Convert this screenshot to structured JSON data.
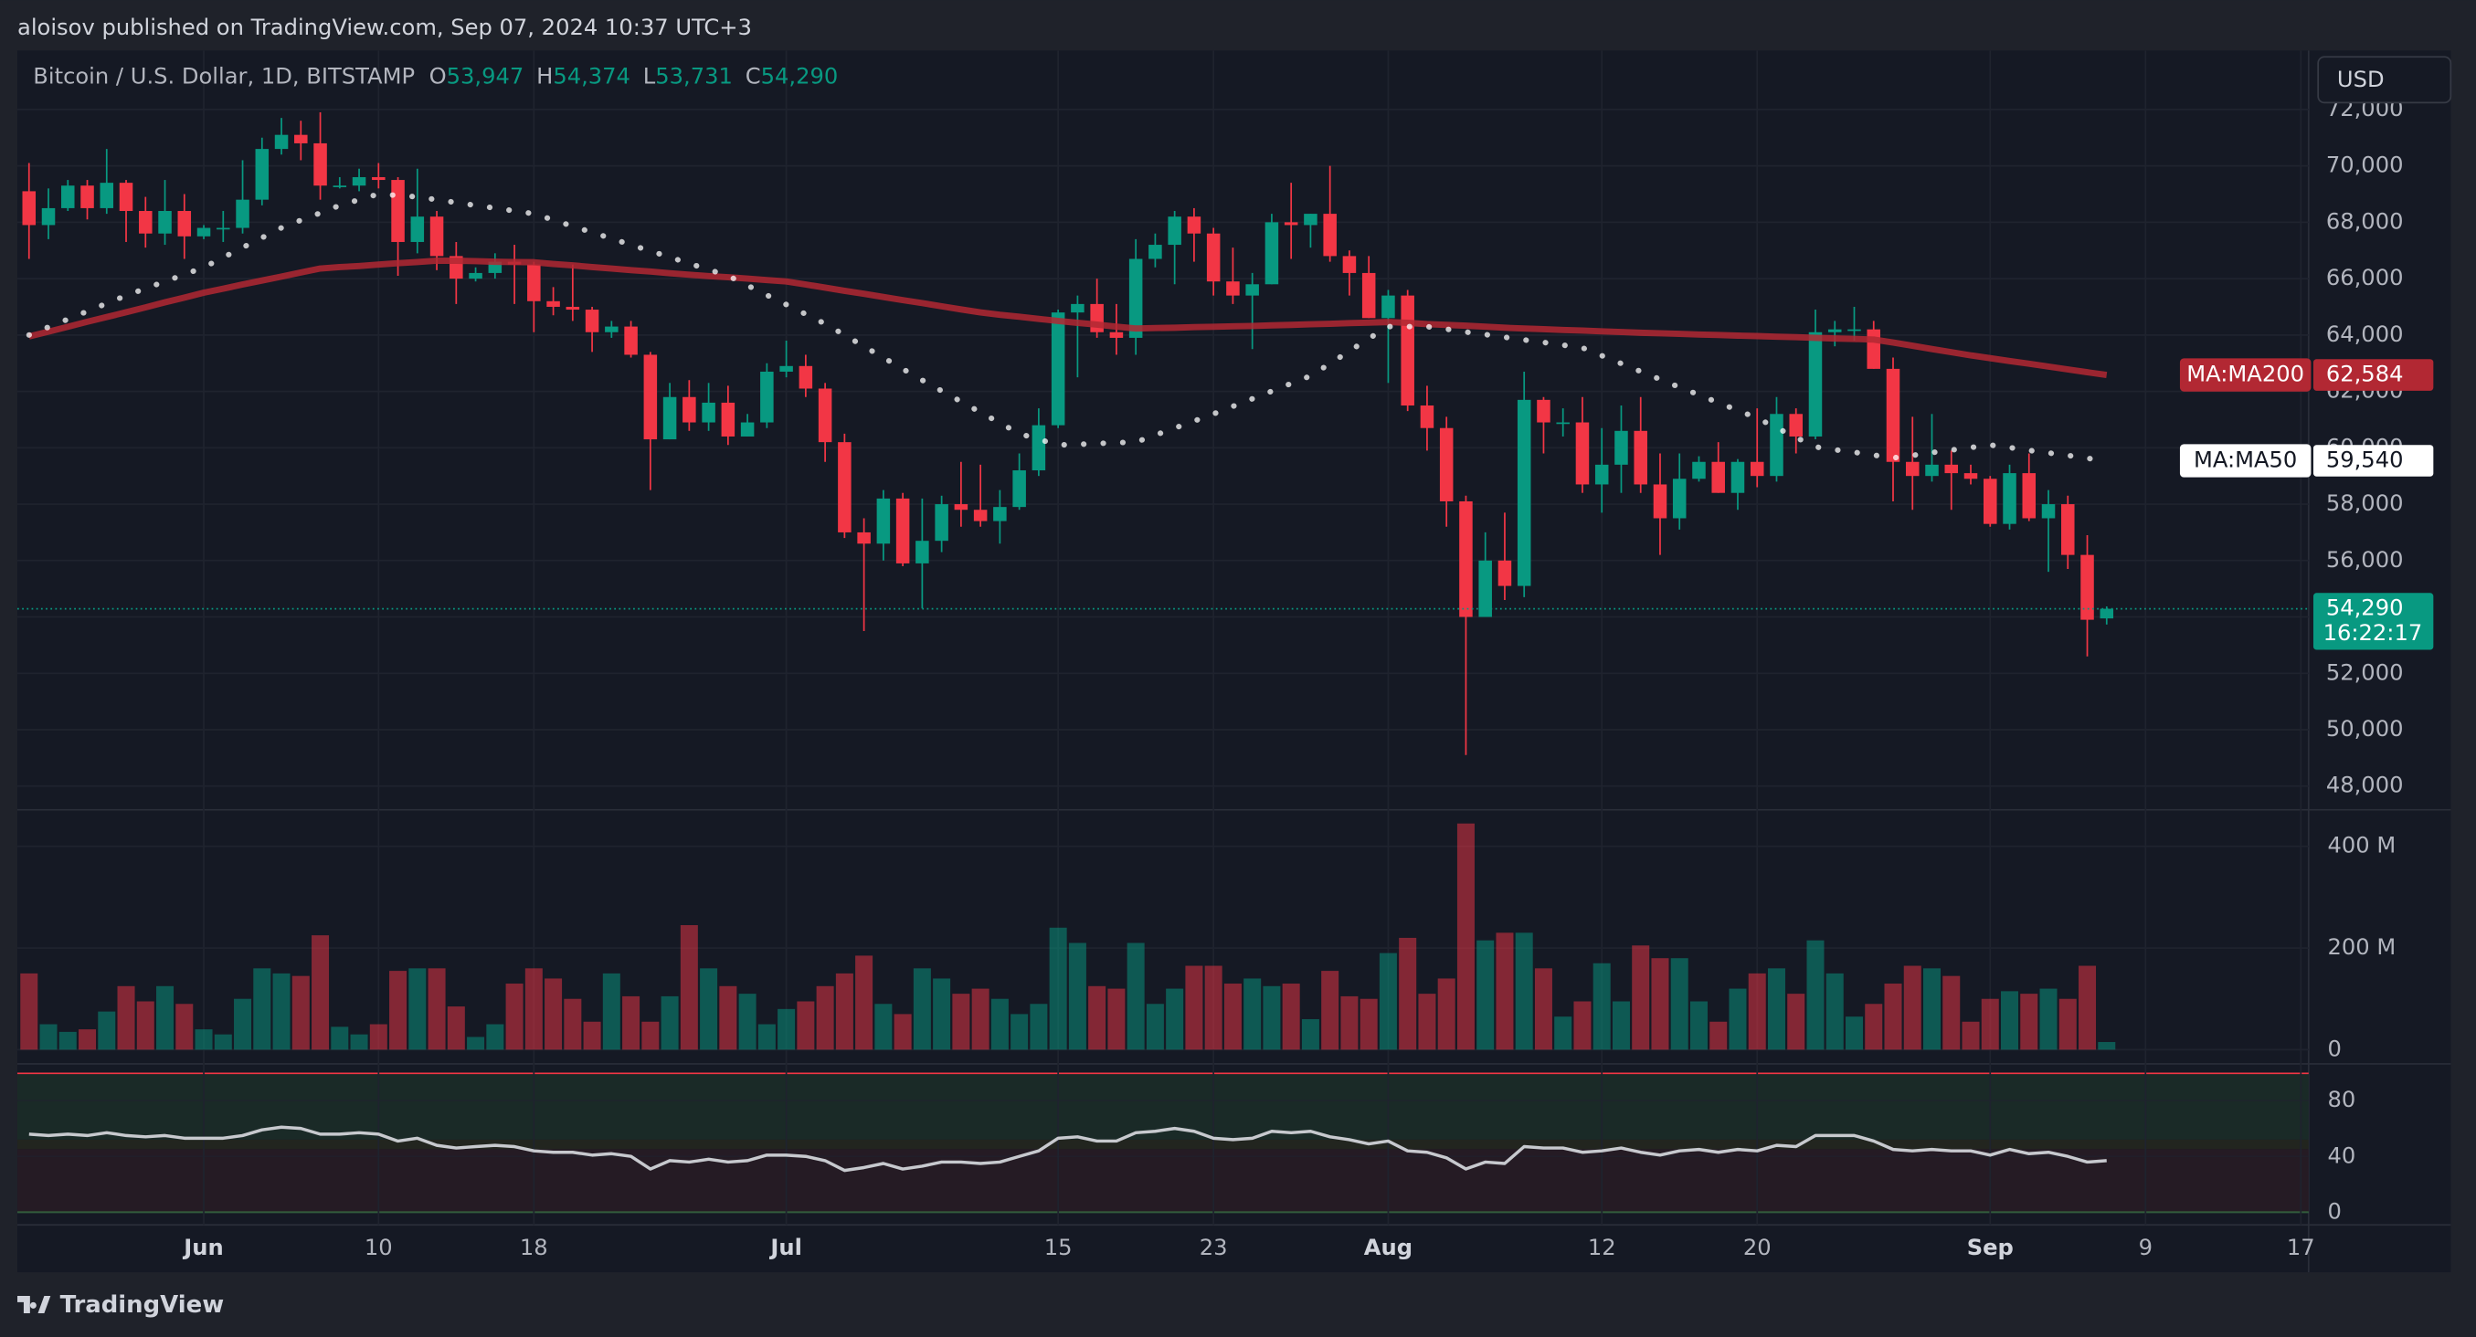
{
  "header": {
    "published": "aloisov published on TradingView.com, Sep 07, 2024 10:37 UTC+3",
    "symbol": "Bitcoin / U.S. Dollar, 1D, BITSTAMP",
    "ohlc": [
      {
        "key": "O",
        "value": "53,947"
      },
      {
        "key": "H",
        "value": "54,374"
      },
      {
        "key": "L",
        "value": "53,731"
      },
      {
        "key": "C",
        "value": "54,290"
      }
    ],
    "currency": "USD",
    "brand": "TradingView"
  },
  "chart_data": [
    {
      "type": "candlestick",
      "up_color": "#089981",
      "down_color": "#f23645",
      "xlim": [
        -0.6,
        117.4
      ],
      "xticks": [
        {
          "value": 9,
          "label": "Jun"
        },
        {
          "value": 18,
          "label": "10"
        },
        {
          "value": 26,
          "label": "18"
        },
        {
          "value": 39,
          "label": "Jul"
        },
        {
          "value": 53,
          "label": "15"
        },
        {
          "value": 61,
          "label": "23"
        },
        {
          "value": 70,
          "label": "Aug"
        },
        {
          "value": 81,
          "label": "12"
        },
        {
          "value": 89,
          "label": "20"
        },
        {
          "value": 101,
          "label": "Sep"
        },
        {
          "value": 109,
          "label": "9"
        },
        {
          "value": 117,
          "label": "17"
        }
      ],
      "ylim": [
        47160,
        74090
      ],
      "yticks": [
        {
          "value": 48000,
          "label": "48,000"
        },
        {
          "value": 50000,
          "label": "50,000"
        },
        {
          "value": 52000,
          "label": "52,000"
        },
        {
          "value": 54000,
          "label": "54,000"
        },
        {
          "value": 56000,
          "label": "56,000"
        },
        {
          "value": 58000,
          "label": "58,000"
        },
        {
          "value": 60000,
          "label": "60,000"
        },
        {
          "value": 62000,
          "label": "62,000"
        },
        {
          "value": 64000,
          "label": "64,000"
        },
        {
          "value": 66000,
          "label": "66,000"
        },
        {
          "value": 68000,
          "label": "68,000"
        },
        {
          "value": 70000,
          "label": "70,000"
        },
        {
          "value": 72000,
          "label": "72,000"
        }
      ],
      "grid": true,
      "price_label": {
        "value": "54,290",
        "countdown": "16:22:17"
      },
      "candles": [
        [
          69100,
          70100,
          66700,
          67900
        ],
        [
          67900,
          69200,
          67400,
          68500
        ],
        [
          68500,
          69500,
          68400,
          69300
        ],
        [
          69300,
          69500,
          68100,
          68500
        ],
        [
          68500,
          70600,
          68300,
          69400
        ],
        [
          69400,
          69500,
          67300,
          68400
        ],
        [
          68400,
          68900,
          67100,
          67600
        ],
        [
          67600,
          69500,
          67200,
          68400
        ],
        [
          68400,
          69000,
          66700,
          67500
        ],
        [
          67500,
          67900,
          67400,
          67800
        ],
        [
          67800,
          68400,
          67300,
          67800
        ],
        [
          67800,
          70200,
          67600,
          68800
        ],
        [
          68800,
          71000,
          68600,
          70600
        ],
        [
          70600,
          71700,
          70400,
          71100
        ],
        [
          71100,
          71600,
          70200,
          70800
        ],
        [
          70800,
          71900,
          68800,
          69300
        ],
        [
          69300,
          69600,
          69200,
          69300
        ],
        [
          69300,
          69900,
          69100,
          69600
        ],
        [
          69600,
          70100,
          69200,
          69500
        ],
        [
          69500,
          69600,
          66100,
          67300
        ],
        [
          67300,
          69900,
          66900,
          68200
        ],
        [
          68200,
          68400,
          66300,
          66800
        ],
        [
          66800,
          67300,
          65100,
          66000
        ],
        [
          66000,
          66400,
          65900,
          66200
        ],
        [
          66200,
          66900,
          66000,
          66600
        ],
        [
          66600,
          67200,
          65100,
          66500
        ],
        [
          66500,
          66600,
          64100,
          65200
        ],
        [
          65200,
          65700,
          64700,
          65000
        ],
        [
          65000,
          66500,
          64500,
          64900
        ],
        [
          64900,
          65000,
          63400,
          64100
        ],
        [
          64100,
          64500,
          63900,
          64300
        ],
        [
          64300,
          64500,
          63200,
          63300
        ],
        [
          63300,
          63400,
          58500,
          60300
        ],
        [
          60300,
          62300,
          60300,
          61800
        ],
        [
          61800,
          62400,
          60600,
          60900
        ],
        [
          60900,
          62300,
          60600,
          61600
        ],
        [
          61600,
          62200,
          60100,
          60400
        ],
        [
          60400,
          61200,
          60400,
          60900
        ],
        [
          60900,
          63000,
          60700,
          62700
        ],
        [
          62700,
          63800,
          62500,
          62900
        ],
        [
          62900,
          63300,
          61800,
          62100
        ],
        [
          62100,
          62300,
          59500,
          60200
        ],
        [
          60200,
          60500,
          56800,
          57000
        ],
        [
          57000,
          57500,
          53500,
          56600
        ],
        [
          56600,
          58500,
          56000,
          58200
        ],
        [
          58200,
          58400,
          55800,
          55900
        ],
        [
          55900,
          58200,
          54300,
          56700
        ],
        [
          56700,
          58300,
          56300,
          58000
        ],
        [
          58000,
          59500,
          57200,
          57800
        ],
        [
          57800,
          59400,
          57200,
          57400
        ],
        [
          57400,
          58500,
          56600,
          57900
        ],
        [
          57900,
          59800,
          57800,
          59200
        ],
        [
          59200,
          61400,
          59000,
          60800
        ],
        [
          60800,
          64900,
          60700,
          64800
        ],
        [
          64800,
          65400,
          62500,
          65100
        ],
        [
          65100,
          66000,
          63900,
          64100
        ],
        [
          64100,
          65100,
          63300,
          63900
        ],
        [
          63900,
          67400,
          63300,
          66700
        ],
        [
          66700,
          67600,
          66400,
          67200
        ],
        [
          67200,
          68400,
          65800,
          68200
        ],
        [
          68200,
          68500,
          66600,
          67600
        ],
        [
          67600,
          67800,
          65400,
          65900
        ],
        [
          65900,
          67100,
          65100,
          65400
        ],
        [
          65400,
          66200,
          63500,
          65800
        ],
        [
          65800,
          68300,
          65800,
          68000
        ],
        [
          68000,
          69400,
          66700,
          67900
        ],
        [
          67900,
          68300,
          67100,
          68300
        ],
        [
          68300,
          70000,
          66600,
          66800
        ],
        [
          66800,
          67000,
          65400,
          66200
        ],
        [
          66200,
          66800,
          64600,
          64600
        ],
        [
          64600,
          65600,
          62300,
          65400
        ],
        [
          65400,
          65600,
          61300,
          61500
        ],
        [
          61500,
          62200,
          59900,
          60700
        ],
        [
          60700,
          61100,
          57200,
          58100
        ],
        [
          58100,
          58300,
          49100,
          54000
        ],
        [
          54000,
          57000,
          54000,
          56000
        ],
        [
          56000,
          57700,
          54600,
          55100
        ],
        [
          55100,
          62700,
          54700,
          61700
        ],
        [
          61700,
          61800,
          59800,
          60900
        ],
        [
          60900,
          61400,
          60400,
          60900
        ],
        [
          60900,
          61800,
          58400,
          58700
        ],
        [
          58700,
          60700,
          57700,
          59400
        ],
        [
          59400,
          61500,
          58400,
          60600
        ],
        [
          60600,
          61800,
          58400,
          58700
        ],
        [
          58700,
          59800,
          56200,
          57500
        ],
        [
          57500,
          59800,
          57100,
          58900
        ],
        [
          58900,
          59700,
          58800,
          59500
        ],
        [
          59500,
          60200,
          58400,
          58400
        ],
        [
          58400,
          59600,
          57800,
          59500
        ],
        [
          59500,
          61400,
          58600,
          59000
        ],
        [
          59000,
          61800,
          58800,
          61200
        ],
        [
          61200,
          61400,
          59800,
          60400
        ],
        [
          60400,
          64900,
          60300,
          64100
        ],
        [
          64100,
          64500,
          63600,
          64200
        ],
        [
          64200,
          65000,
          63800,
          64200
        ],
        [
          64200,
          64500,
          62800,
          62800
        ],
        [
          62800,
          63200,
          58100,
          59500
        ],
        [
          59500,
          61100,
          57800,
          59000
        ],
        [
          59000,
          61200,
          58800,
          59400
        ],
        [
          59400,
          59900,
          57800,
          59100
        ],
        [
          59100,
          59400,
          58700,
          58900
        ],
        [
          58900,
          59000,
          57200,
          57300
        ],
        [
          57300,
          59400,
          57100,
          59100
        ],
        [
          59100,
          59800,
          57400,
          57500
        ],
        [
          57500,
          58500,
          55600,
          58000
        ],
        [
          58000,
          58300,
          55700,
          56200
        ],
        [
          56200,
          56900,
          52600,
          53900
        ],
        [
          53947,
          54374,
          53731,
          54290
        ]
      ],
      "series": [
        {
          "name": "MA:MA200",
          "color": "#b22833",
          "last_value_label": "62,584",
          "values": [
            63950,
            64120,
            64290,
            64470,
            64640,
            64810,
            64980,
            65160,
            65330,
            65500,
            65640,
            65790,
            65930,
            66070,
            66220,
            66360,
            66410,
            66450,
            66500,
            66550,
            66590,
            66640,
            66630,
            66620,
            66600,
            66590,
            66580,
            66520,
            66470,
            66410,
            66360,
            66300,
            66250,
            66190,
            66140,
            66090,
            66050,
            66000,
            65950,
            65900,
            65790,
            65680,
            65570,
            65460,
            65350,
            65240,
            65130,
            65020,
            64910,
            64800,
            64720,
            64650,
            64570,
            64500,
            64430,
            64370,
            64300,
            64230,
            64250,
            64260,
            64280,
            64290,
            64310,
            64320,
            64340,
            64360,
            64380,
            64400,
            64420,
            64440,
            64460,
            64430,
            64390,
            64360,
            64330,
            64300,
            64260,
            64230,
            64210,
            64180,
            64160,
            64130,
            64110,
            64080,
            64060,
            64040,
            64020,
            64000,
            63980,
            63960,
            63940,
            63920,
            63900,
            63880,
            63860,
            63840,
            63730,
            63620,
            63500,
            63390,
            63280,
            63180,
            63080,
            62980,
            62880,
            62780,
            62680,
            62584
          ]
        },
        {
          "name": "MA:MA50",
          "color": "#ffffff",
          "last_value_label": "59,540",
          "values": [
            64000,
            64280,
            64560,
            64840,
            65120,
            65400,
            65650,
            65900,
            66150,
            66400,
            66750,
            67100,
            67450,
            67800,
            68070,
            68330,
            68600,
            68800,
            69000,
            68950,
            68900,
            68800,
            68700,
            68600,
            68500,
            68400,
            68300,
            68080,
            67860,
            67640,
            67420,
            67200,
            66980,
            66760,
            66540,
            66320,
            66100,
            65760,
            65420,
            65080,
            64740,
            64400,
            64000,
            63600,
            63200,
            62800,
            62400,
            62020,
            61640,
            61260,
            60880,
            60500,
            60300,
            60100,
            60120,
            60150,
            60180,
            60200,
            60450,
            60700,
            60950,
            61200,
            61470,
            61740,
            62010,
            62280,
            62550,
            62990,
            63430,
            63870,
            64300,
            64300,
            64300,
            64210,
            64110,
            64020,
            63920,
            63830,
            63740,
            63640,
            63550,
            63270,
            62990,
            62710,
            62430,
            62150,
            61880,
            61600,
            61330,
            61050,
            60710,
            60370,
            60030,
            59930,
            59840,
            59740,
            59640,
            59730,
            59830,
            59920,
            60010,
            60100,
            60010,
            59910,
            59820,
            59730,
            59630,
            59540
          ]
        }
      ]
    },
    {
      "type": "bar",
      "ylim": [
        -28,
        472
      ],
      "yticks": [
        0,
        {
          "value": 200,
          "label": "200 M"
        },
        {
          "value": 400,
          "label": "400 M"
        }
      ],
      "values": [
        150,
        50,
        35,
        40,
        75,
        125,
        95,
        125,
        90,
        40,
        30,
        100,
        160,
        150,
        145,
        225,
        45,
        30,
        50,
        155,
        160,
        160,
        85,
        25,
        50,
        130,
        160,
        140,
        100,
        55,
        150,
        105,
        55,
        105,
        245,
        160,
        125,
        110,
        50,
        80,
        95,
        125,
        150,
        185,
        90,
        70,
        160,
        140,
        110,
        120,
        100,
        70,
        90,
        240,
        210,
        125,
        120,
        210,
        90,
        120,
        165,
        165,
        130,
        140,
        125,
        130,
        60,
        155,
        105,
        100,
        190,
        220,
        110,
        140,
        445,
        215,
        230,
        230,
        160,
        65,
        95,
        170,
        95,
        205,
        180,
        180,
        95,
        55,
        120,
        150,
        160,
        110,
        215,
        150,
        65,
        90,
        130,
        165,
        160,
        145,
        55,
        100,
        115,
        110,
        120,
        100,
        165,
        15
      ]
    },
    {
      "type": "line",
      "color": "#c7c9ce",
      "ylim": [
        -9,
        104
      ],
      "yticks": [
        0,
        40,
        80
      ],
      "values": [
        56,
        55,
        56,
        55,
        57,
        55,
        54,
        55,
        53,
        53,
        53,
        55,
        59,
        61,
        60,
        56,
        56,
        57,
        56,
        51,
        53,
        48,
        46,
        47,
        48,
        47,
        44,
        43,
        43,
        41,
        42,
        40,
        31,
        37,
        36,
        38,
        36,
        37,
        41,
        41,
        40,
        37,
        30,
        32,
        35,
        31,
        33,
        36,
        36,
        35,
        36,
        40,
        44,
        53,
        54,
        51,
        51,
        57,
        58,
        60,
        58,
        53,
        52,
        53,
        58,
        57,
        58,
        54,
        52,
        49,
        51,
        44,
        43,
        39,
        31,
        36,
        35,
        47,
        46,
        46,
        43,
        44,
        46,
        43,
        41,
        44,
        45,
        43,
        45,
        44,
        48,
        47,
        55,
        55,
        55,
        51,
        45,
        44,
        45,
        44,
        44,
        41,
        45,
        42,
        43,
        40,
        36,
        37
      ]
    }
  ]
}
